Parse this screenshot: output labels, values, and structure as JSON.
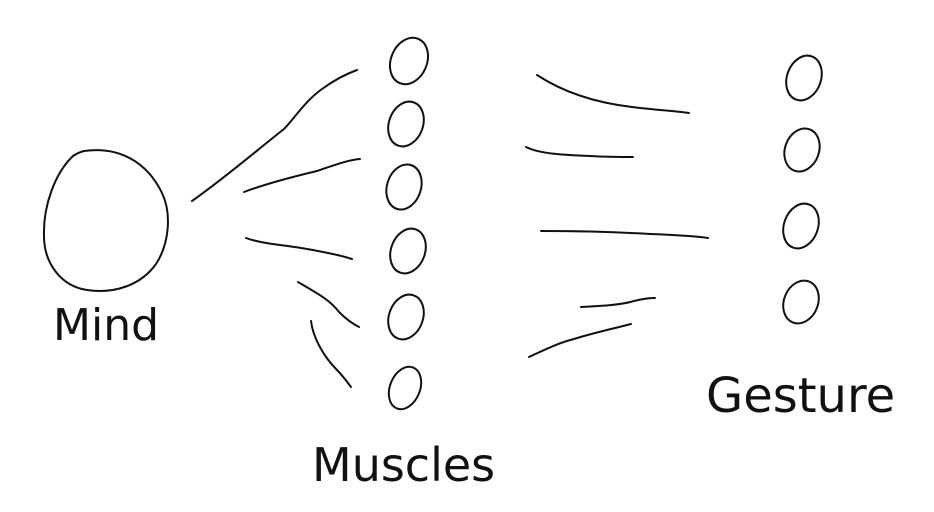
{
  "labels": {
    "mind": "Mind",
    "muscles": "Muscles",
    "gesture": "Gesture"
  },
  "colors": {
    "ink": "#111111",
    "background": "#ffffff"
  }
}
